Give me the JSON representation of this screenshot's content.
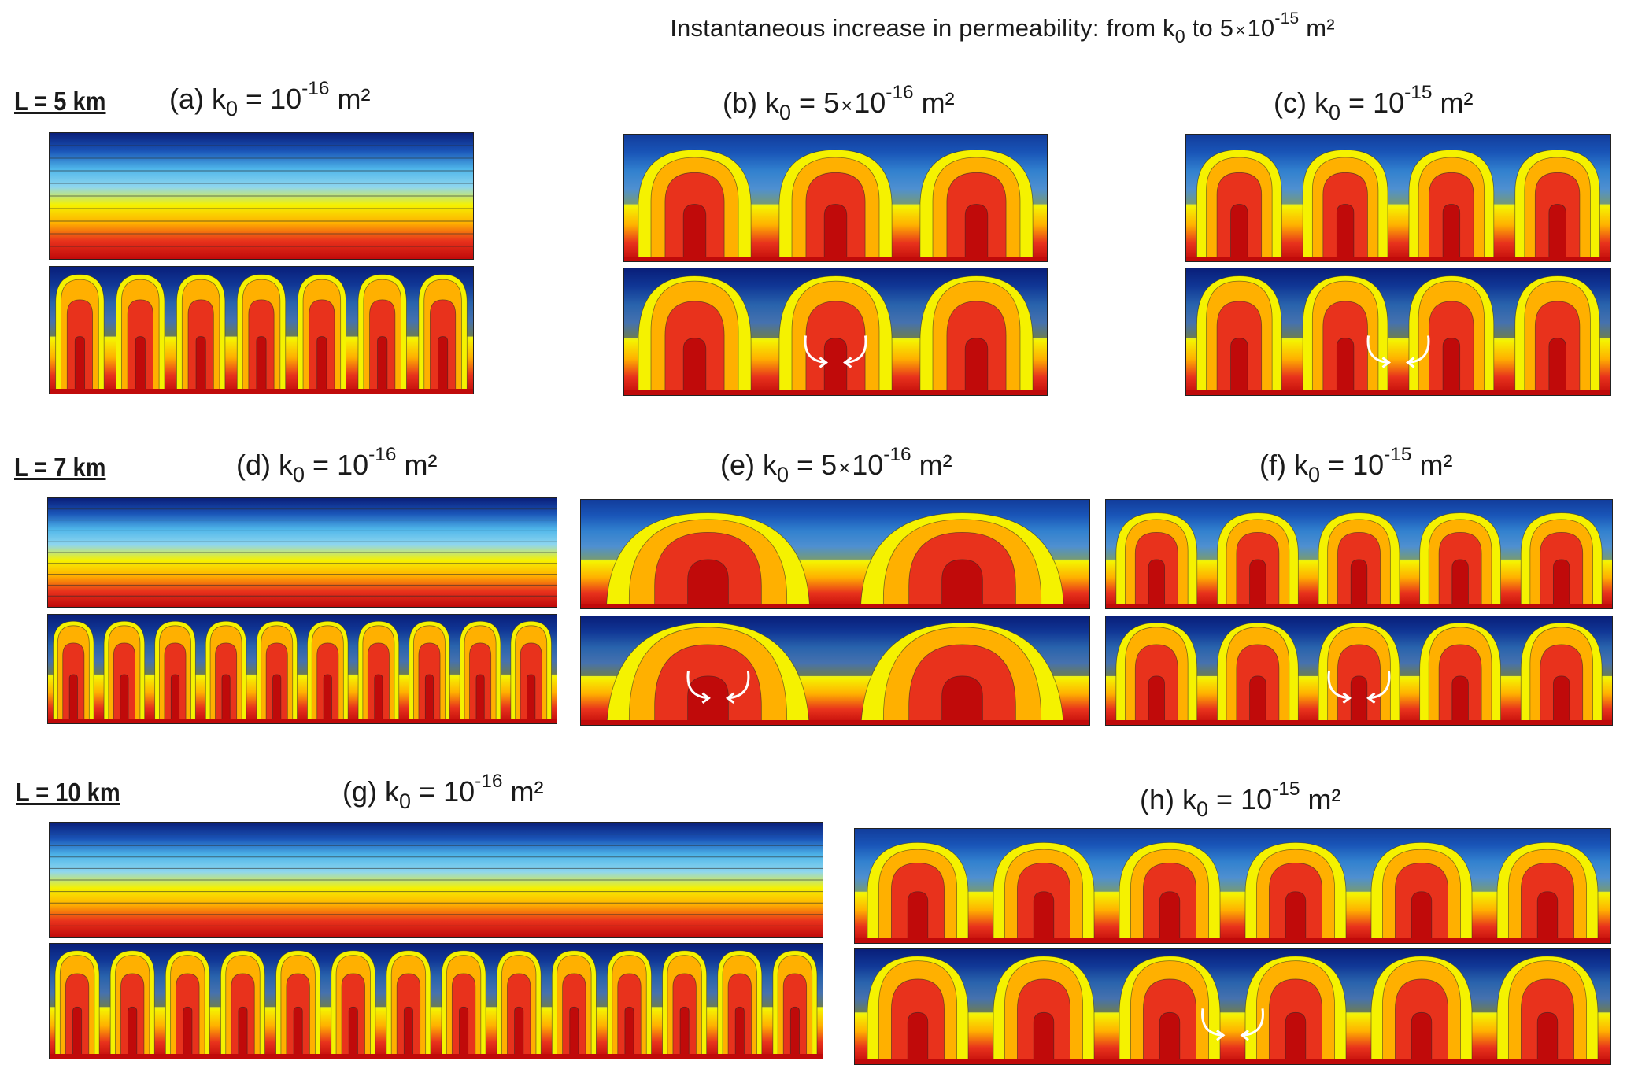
{
  "title": {
    "prefix": "Instantaneous increase in permeability: from k",
    "sub": "0",
    "mid": " to 5",
    "times": "×",
    "base": "10",
    "exp": "-15",
    "unit": " m²"
  },
  "rows": [
    {
      "label": "L = 5 km"
    },
    {
      "label": "L = 7 km"
    },
    {
      "label": "L = 10 km"
    }
  ],
  "panels": [
    {
      "id": "a",
      "tag": "(a)",
      "coef": "",
      "exp": "-16"
    },
    {
      "id": "b",
      "tag": "(b)",
      "coef": "5",
      "exp": "-16"
    },
    {
      "id": "c",
      "tag": "(c)",
      "coef": "",
      "exp": "-15"
    },
    {
      "id": "d",
      "tag": "(d)",
      "coef": "",
      "exp": "-16"
    },
    {
      "id": "e",
      "tag": "(e)",
      "coef": "5",
      "exp": "-16"
    },
    {
      "id": "f",
      "tag": "(f)",
      "coef": "",
      "exp": "-15"
    },
    {
      "id": "g",
      "tag": "(g)",
      "coef": "",
      "exp": "-16"
    },
    {
      "id": "h",
      "tag": "(h)",
      "coef": "",
      "exp": "-15"
    }
  ],
  "label_parts": {
    "k": "k",
    "sub": "0",
    "eq": " = ",
    "base": "10",
    "times": "×",
    "unit": " m²"
  },
  "colors": {
    "colormap": [
      "#0a1f7a",
      "#1a55b8",
      "#4fb6ea",
      "#8fd6ef",
      "#f5f200",
      "#ffb000",
      "#e8321c",
      "#c00a0a"
    ],
    "contour": "#2a2a2a",
    "arrow": "#ffffff"
  },
  "figure": {
    "panel_pairs": [
      {
        "id": "a",
        "top_plumes": 0,
        "bottom_plumes": 7,
        "arrows": false
      },
      {
        "id": "b",
        "top_plumes": 3,
        "bottom_plumes": 3,
        "arrows": true
      },
      {
        "id": "c",
        "top_plumes": 4,
        "bottom_plumes": 4,
        "arrows": true
      },
      {
        "id": "d",
        "top_plumes": 0,
        "bottom_plumes": 10,
        "arrows": false
      },
      {
        "id": "e",
        "top_plumes": 2,
        "bottom_plumes": 2,
        "arrows": true
      },
      {
        "id": "f",
        "top_plumes": 5,
        "bottom_plumes": 5,
        "arrows": true
      },
      {
        "id": "g",
        "top_plumes": 0,
        "bottom_plumes": 14,
        "arrows": false
      },
      {
        "id": "h",
        "top_plumes": 6,
        "bottom_plumes": 6,
        "arrows": true
      }
    ]
  }
}
